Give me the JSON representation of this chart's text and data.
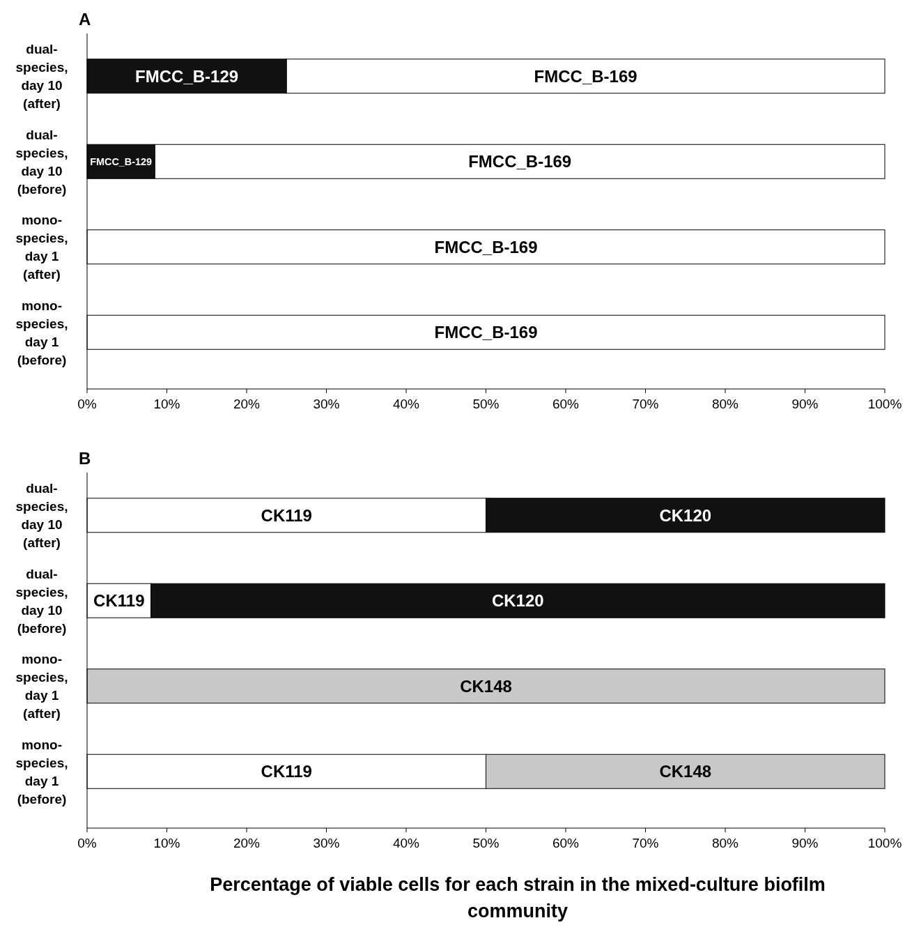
{
  "chart_data": [
    {
      "type": "bar",
      "orientation": "horizontal",
      "stacked": true,
      "title": "A",
      "categories": [
        "dual-\nspecies,\nday 10\n(after)",
        "dual-\nspecies,\nday 10\n(before)",
        "mono-\nspecies,\nday 1\n(after)",
        "mono-\nspecies,\nday 1\n(before)"
      ],
      "series": [
        {
          "name": "FMCC_B-129",
          "color": "#111111",
          "values": [
            25,
            8.5,
            null,
            null
          ]
        },
        {
          "name": "FMCC_B-169",
          "color": "#ffffff",
          "values": [
            75,
            91.5,
            100,
            100
          ]
        }
      ],
      "xlim": [
        0,
        100
      ],
      "xticks": [
        {
          "value": 0,
          "label": "0%"
        },
        {
          "value": 10,
          "label": "10%"
        },
        {
          "value": 20,
          "label": "20%"
        },
        {
          "value": 30,
          "label": "30%"
        },
        {
          "value": 40,
          "label": "40%"
        },
        {
          "value": 50,
          "label": "50%"
        },
        {
          "value": 60,
          "label": "60%"
        },
        {
          "value": 70,
          "label": "70%"
        },
        {
          "value": 80,
          "label": "80%"
        },
        {
          "value": 90,
          "label": "90%"
        },
        {
          "value": 100,
          "label": "100%"
        }
      ]
    },
    {
      "type": "bar",
      "orientation": "horizontal",
      "stacked": true,
      "title": "B",
      "xlabel": "Percentage of viable cells for each strain in the mixed-culture biofilm community",
      "categories": [
        "dual-\nspecies,\nday 10\n(after)",
        "dual-\nspecies,\nday 10\n(before)",
        "mono-\nspecies,\nday 1\n(after)",
        "mono-\nspecies,\nday 1\n(before)"
      ],
      "series": [
        {
          "name": "CK119",
          "color": "#ffffff",
          "values": [
            50,
            8,
            null,
            50
          ]
        },
        {
          "name": "CK120",
          "color": "#111111",
          "values": [
            50,
            92,
            null,
            null
          ]
        },
        {
          "name": "CK148",
          "color": "#c8c8c8",
          "values": [
            null,
            null,
            100,
            50
          ]
        }
      ],
      "xlim": [
        0,
        100
      ],
      "xticks": [
        {
          "value": 0,
          "label": "0%"
        },
        {
          "value": 10,
          "label": "10%"
        },
        {
          "value": 20,
          "label": "20%"
        },
        {
          "value": 30,
          "label": "30%"
        },
        {
          "value": 40,
          "label": "40%"
        },
        {
          "value": 50,
          "label": "50%"
        },
        {
          "value": 60,
          "label": "60%"
        },
        {
          "value": 70,
          "label": "70%"
        },
        {
          "value": 80,
          "label": "80%"
        },
        {
          "value": 90,
          "label": "90%"
        },
        {
          "value": 100,
          "label": "100%"
        }
      ]
    }
  ]
}
